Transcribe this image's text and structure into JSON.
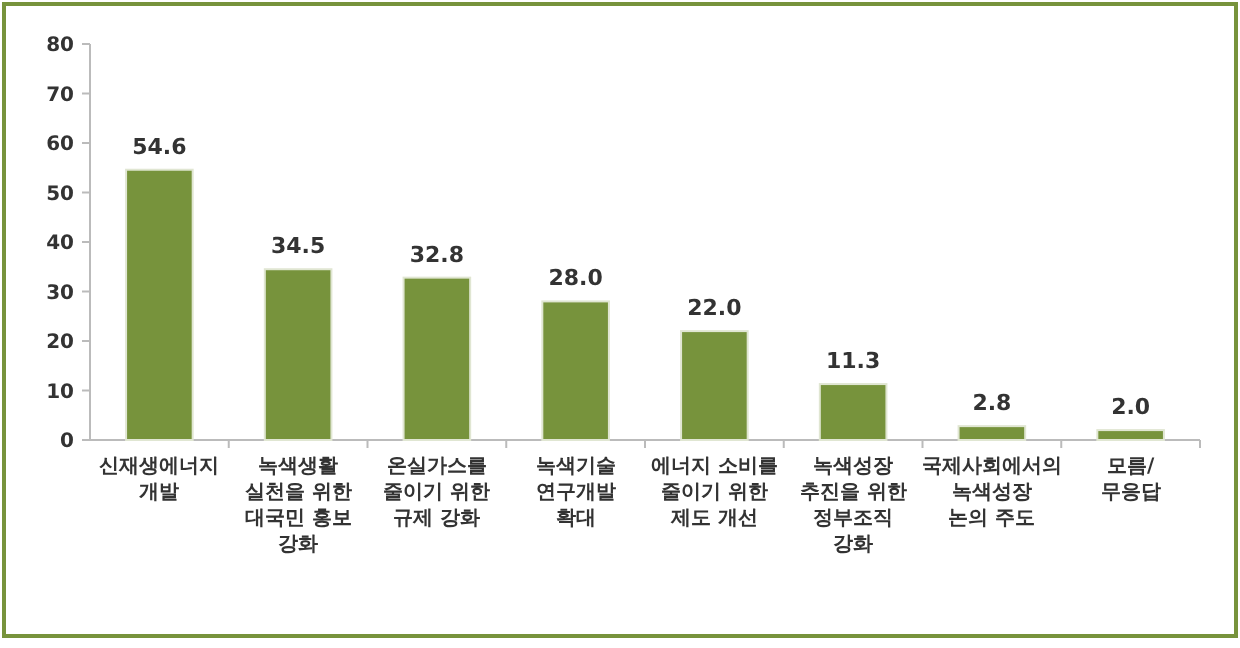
{
  "chart_data": {
    "type": "bar",
    "categories": [
      "신재생에너지\n개발",
      "녹색생활\n실천을 위한\n대국민 홍보\n강화",
      "온실가스를\n줄이기 위한\n규제 강화",
      "녹색기술\n연구개발\n확대",
      "에너지 소비를\n줄이기 위한\n제도 개선",
      "녹색성장\n추진을 위한\n정부조직\n강화",
      "국제사회에서의\n녹색성장\n논의 주도",
      "모름/\n무응답"
    ],
    "values": [
      54.6,
      34.5,
      32.8,
      28.0,
      22.0,
      11.3,
      2.8,
      2.0
    ],
    "value_labels": [
      "54.6",
      "34.5",
      "32.8",
      "28.0",
      "22.0",
      "11.3",
      "2.8",
      "2.0"
    ],
    "color": "#77933c",
    "ylim": [
      0,
      80
    ],
    "yticks": [
      0,
      10,
      20,
      30,
      40,
      50,
      60,
      70,
      80
    ],
    "grid": false
  }
}
